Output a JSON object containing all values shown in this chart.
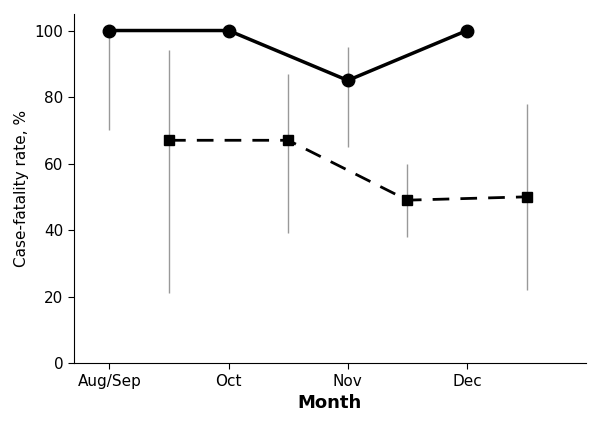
{
  "title": "",
  "xlabel": "Month",
  "ylabel": "Case-fatality rate, %",
  "xlim": [
    -0.3,
    4.0
  ],
  "ylim": [
    0,
    105
  ],
  "yticks": [
    0,
    20,
    40,
    60,
    80,
    100
  ],
  "xtick_positions": [
    0,
    1,
    2,
    3
  ],
  "xtick_labels": [
    "Aug/Sep",
    "Oct",
    "Nov",
    "Dec"
  ],
  "solid_line": {
    "x": [
      0,
      1,
      2,
      3
    ],
    "y": [
      100,
      100,
      85,
      100
    ],
    "ci_low": [
      70,
      100,
      65,
      100
    ],
    "ci_high": [
      100,
      100,
      95,
      100
    ],
    "color": "#000000",
    "linewidth": 2.5,
    "marker": "o",
    "markersize": 9,
    "linestyle": "solid"
  },
  "dashed_line": {
    "x": [
      0.5,
      1.5,
      2.5,
      3.5
    ],
    "y": [
      67,
      67,
      49,
      50
    ],
    "ci_low": [
      21,
      39,
      38,
      22
    ],
    "ci_high": [
      94,
      87,
      60,
      78
    ],
    "color": "#000000",
    "linewidth": 2.0,
    "marker": "s",
    "markersize": 7,
    "linestyle": "dashed"
  },
  "background_color": "#ffffff",
  "figsize": [
    6.0,
    4.26
  ],
  "dpi": 100
}
